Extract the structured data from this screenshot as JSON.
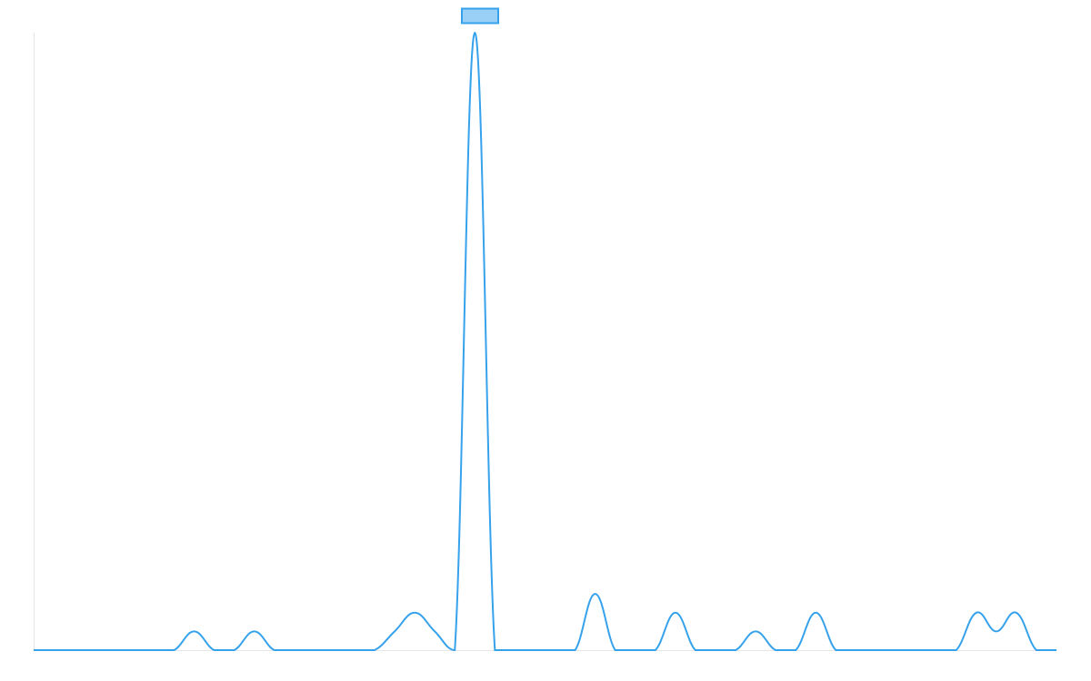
{
  "chart_data": {
    "type": "line",
    "categories": [
      null,
      null,
      null,
      null,
      null,
      null,
      null,
      null,
      null,
      null,
      null,
      null,
      null,
      null,
      null,
      null,
      null,
      null,
      null,
      null,
      null,
      null,
      null,
      null,
      null,
      null,
      null,
      null,
      null,
      null,
      null,
      null,
      null,
      null,
      null,
      null,
      null,
      null,
      null,
      null,
      null,
      null,
      null,
      null,
      null,
      null,
      null,
      null,
      null,
      null,
      null,
      null
    ],
    "series": [
      {
        "color": "#36a2eb",
        "fill": "#9ad0f5",
        "values": [
          0,
          0,
          0,
          0,
          0,
          0,
          0,
          0,
          1,
          0,
          0,
          1,
          0,
          0,
          0,
          0,
          0,
          0,
          1,
          2,
          1,
          0,
          33,
          0,
          0,
          0,
          0,
          0,
          3,
          0,
          0,
          0,
          2,
          0,
          0,
          0,
          1,
          0,
          0,
          2,
          0,
          0,
          0,
          0,
          0,
          0,
          0,
          2,
          1,
          2,
          0,
          0
        ]
      }
    ],
    "ylim": [
      0,
      33
    ]
  }
}
